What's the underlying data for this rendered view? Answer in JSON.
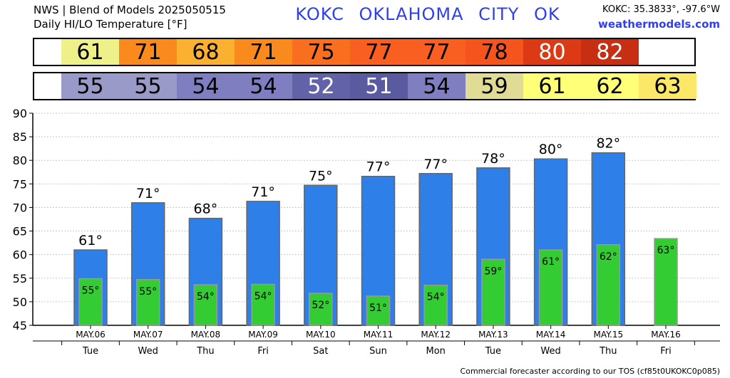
{
  "header": {
    "line1": "NWS | Blend of Models 2025050515",
    "line2": "Daily HI/LO Temperature [°F]",
    "station_title": "KOKC OKLAHOMA CITY OK",
    "coords": "KOKC: 35.3833°, -97.6°W",
    "site": "weathermodels.com"
  },
  "footer": "Commercial forecaster according to our TOS (cf85t0UKOKC0p085)",
  "colors": {
    "hi_bar": "#2e7fe8",
    "lo_bar": "#33cc33",
    "grid": "#c8c8c8"
  },
  "strip_hi": [
    {
      "value": "61",
      "color": "#eef08a"
    },
    {
      "value": "71",
      "color": "#fb8a1e"
    },
    {
      "value": "68",
      "color": "#fbb030"
    },
    {
      "value": "71",
      "color": "#fb8a1e"
    },
    {
      "value": "75",
      "color": "#fa6f1f"
    },
    {
      "value": "77",
      "color": "#f85f20"
    },
    {
      "value": "77",
      "color": "#f85f20"
    },
    {
      "value": "78",
      "color": "#f5541c"
    },
    {
      "value": "80",
      "color": "#dc3a14",
      "light": true
    },
    {
      "value": "82",
      "color": "#c82f12",
      "light": true
    }
  ],
  "strip_lo": [
    {
      "value": "55",
      "color": "#9a9ac8"
    },
    {
      "value": "55",
      "color": "#9a9ac8"
    },
    {
      "value": "54",
      "color": "#7e7ec0"
    },
    {
      "value": "54",
      "color": "#7e7ec0"
    },
    {
      "value": "52",
      "color": "#6262a8",
      "light": true
    },
    {
      "value": "51",
      "color": "#5a5aa0",
      "light": true
    },
    {
      "value": "54",
      "color": "#7e7ec0"
    },
    {
      "value": "59",
      "color": "#e0dc96"
    },
    {
      "value": "61",
      "color": "#ffff78"
    },
    {
      "value": "62",
      "color": "#ffff78"
    },
    {
      "value": "63",
      "color": "#fbe868"
    }
  ],
  "chart_data": {
    "type": "bar",
    "categories": [
      "MAY.06",
      "MAY.07",
      "MAY.08",
      "MAY.09",
      "MAY.10",
      "MAY.11",
      "MAY.12",
      "MAY.13",
      "MAY.14",
      "MAY.15",
      "MAY.16"
    ],
    "weekdays": [
      "Tue",
      "Wed",
      "Thu",
      "Fri",
      "Sat",
      "Sun",
      "Mon",
      "Tue",
      "Wed",
      "Thu",
      "Fri"
    ],
    "series": [
      {
        "values": [
          61,
          71,
          67.7,
          71.3,
          74.7,
          76.6,
          77.2,
          78.4,
          80.3,
          81.6,
          null
        ],
        "labels": [
          "61°",
          "71°",
          "68°",
          "71°",
          "75°",
          "77°",
          "77°",
          "78°",
          "80°",
          "82°",
          ""
        ]
      },
      {
        "values": [
          54.9,
          54.7,
          53.6,
          53.7,
          51.8,
          51.2,
          53.5,
          59.0,
          61.0,
          62.1,
          63.4
        ],
        "labels": [
          "55°",
          "55°",
          "54°",
          "54°",
          "52°",
          "51°",
          "54°",
          "59°",
          "61°",
          "62°",
          "63°"
        ]
      }
    ],
    "ylim": [
      45,
      90
    ],
    "yticks": [
      "45",
      "50",
      "55",
      "60",
      "65",
      "70",
      "75",
      "80",
      "85",
      "90"
    ],
    "grid": true
  }
}
